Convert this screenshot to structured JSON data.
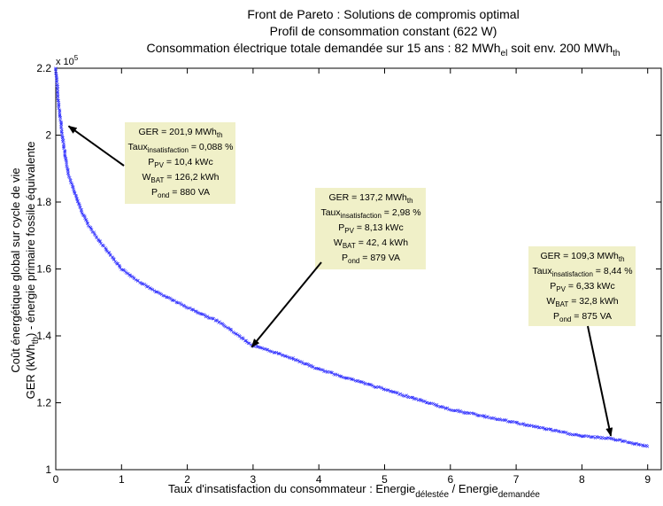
{
  "chart_data": {
    "type": "scatter",
    "title": [
      "Front de Pareto : Solutions de compromis optimal",
      "Profil de consommation constant (622 W)",
      "Consommation électrique totale demandée sur 15 ans : 82 MWh_el soit env. 200 MWh_th"
    ],
    "xlabel": "Taux d'insatisfaction du consommateur : Energie_délestée / Energie_demandée",
    "ylabel": [
      "Coût énergétique global sur cycle de vie",
      "GER (kWh_th) - énergie primaire fossile équivalente"
    ],
    "y_exponent": "x 10^5",
    "xlim": [
      0,
      9.3
    ],
    "ylim": [
      1.0,
      2.2
    ],
    "xticks": [
      0,
      1,
      2,
      3,
      4,
      5,
      6,
      7,
      8,
      9
    ],
    "yticks": [
      1,
      1.2,
      1.4,
      1.6,
      1.8,
      2,
      2.2
    ],
    "ytick_labels": [
      "1",
      "1.2",
      "1.4",
      "1.6",
      "1.8",
      "2",
      "2.2"
    ],
    "grid": false,
    "marker_color": "#3333ff",
    "series": [
      {
        "x": [
          0.0,
          0.05,
          0.1,
          0.15,
          0.2,
          0.3,
          0.4,
          0.5,
          0.6,
          0.8,
          1.0,
          1.2,
          1.5,
          2.0,
          2.5,
          2.98,
          3.5,
          4.0,
          5.0,
          6.0,
          7.0,
          8.0,
          8.44,
          9.0
        ],
        "y": [
          2.2,
          2.08,
          2.0,
          1.93,
          1.88,
          1.82,
          1.77,
          1.73,
          1.7,
          1.65,
          1.6,
          1.57,
          1.535,
          1.485,
          1.44,
          1.372,
          1.34,
          1.3,
          1.24,
          1.18,
          1.14,
          1.1,
          1.093,
          1.07
        ]
      }
    ],
    "annotations": [
      {
        "ger": "GER = 201,9 MWh",
        "ger_sub": "th",
        "taux": "Taux",
        "taux_sub": "insatisfaction",
        "taux_val": " = 0,088 %",
        "ppv": "P",
        "ppv_sub": "PV",
        "ppv_val": " = 10,4 kWc",
        "wbat": "W",
        "wbat_sub": "BAT",
        "wbat_val": " = 126,2 kWh",
        "pond": "P",
        "pond_sub": "ond",
        "pond_val": " = 880 VA",
        "target_x": 0.088,
        "target_y": 2.019
      },
      {
        "ger": "GER = 137,2 MWh",
        "ger_sub": "th",
        "taux": "Taux",
        "taux_sub": "insatisfaction",
        "taux_val": " = 2,98 %",
        "ppv": "P",
        "ppv_sub": "PV",
        "ppv_val": " = 8,13 kWc",
        "wbat": "W",
        "wbat_sub": "BAT",
        "wbat_val": " = 42, 4 kWh",
        "pond": "P",
        "pond_sub": "ond",
        "pond_val": " = 879 VA",
        "target_x": 2.98,
        "target_y": 1.372
      },
      {
        "ger": "GER = 109,3 MWh",
        "ger_sub": "th",
        "taux": "Taux",
        "taux_sub": "insatisfaction",
        "taux_val": " = 8,44 %",
        "ppv": "P",
        "ppv_sub": "PV",
        "ppv_val": " = 6,33 kWc",
        "wbat": "W",
        "wbat_sub": "BAT",
        "wbat_val": " = 32,8 kWh",
        "pond": "P",
        "pond_sub": "ond",
        "pond_val": " = 875 VA",
        "target_x": 8.44,
        "target_y": 1.093
      }
    ],
    "annotation_bg": "#f0f0c8"
  }
}
